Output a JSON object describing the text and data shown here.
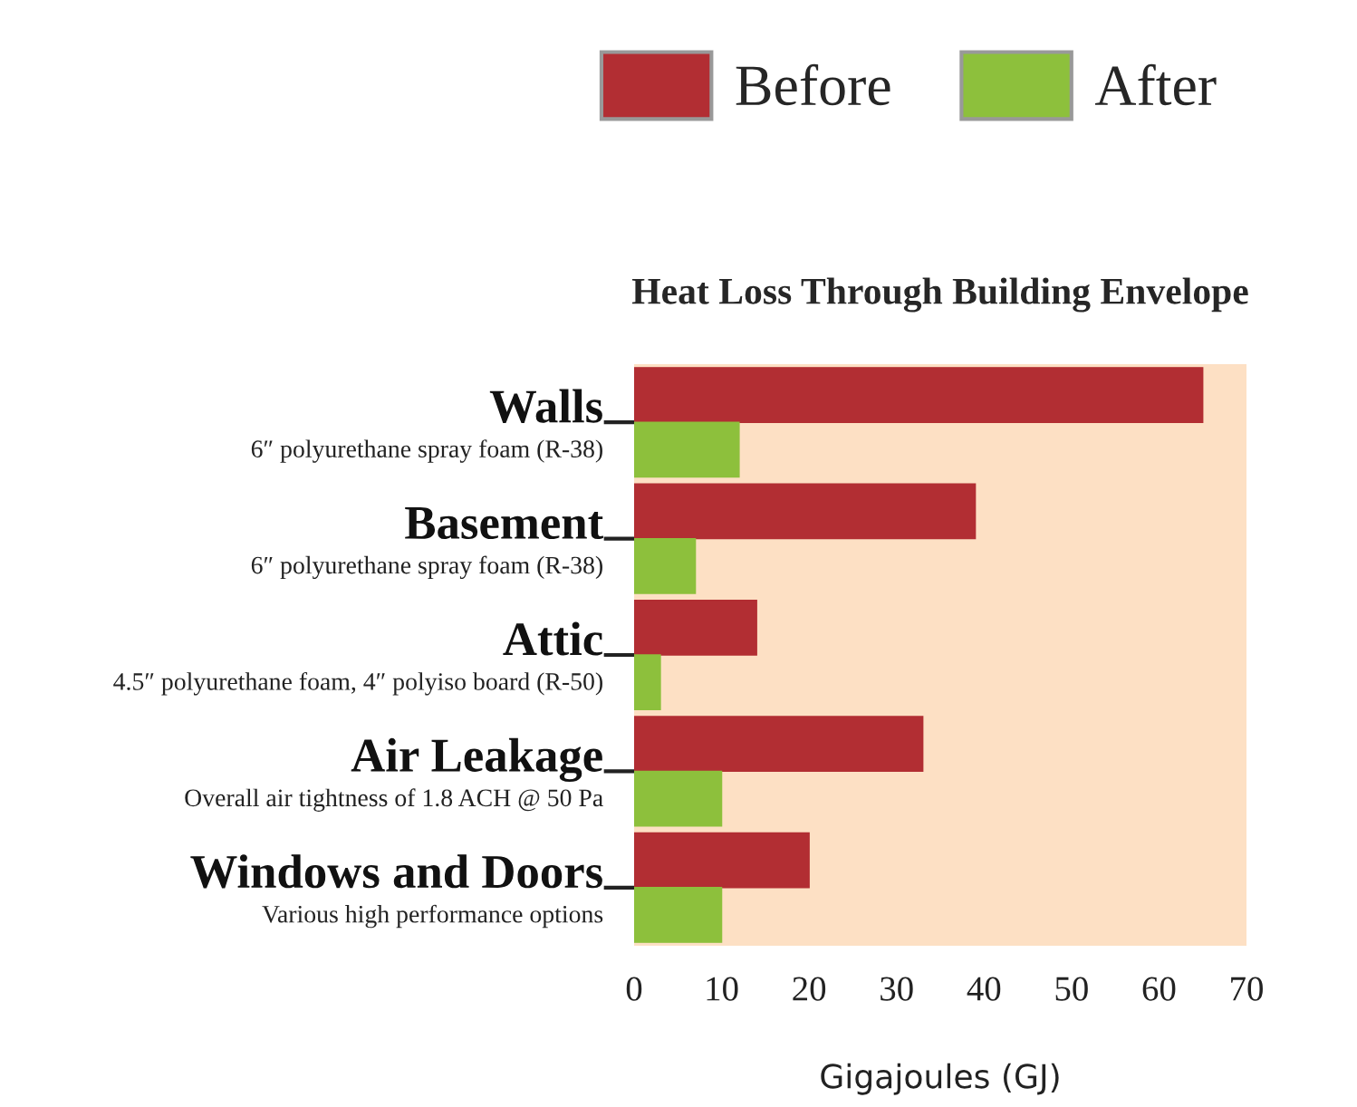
{
  "chart_data": {
    "type": "bar",
    "orientation": "horizontal",
    "title": "Heat Loss Through Building Envelope",
    "xlabel": "Gigajoules (GJ)",
    "categories": [
      "Walls\n6″ polyurethane spray foam (R-38)",
      "Basement\n6″ polyurethane spray foam (R-38)",
      "Attic\n4.5″ polyurethane foam, 4″ polyiso board (R-50)",
      "Air Leakage\nOverall air tightness of 1.8 ACH @ 50 Pa",
      "Windows and Doors\nVarious high performance options"
    ],
    "series": [
      {
        "name": "Before",
        "color": "#b22e33",
        "values": [
          65,
          39,
          14,
          33,
          20
        ]
      },
      {
        "name": "After",
        "color": "#8dc03c",
        "values": [
          12,
          7,
          3,
          10,
          10
        ]
      }
    ],
    "xlim": [
      0,
      70
    ],
    "xticks": [
      0,
      10,
      20,
      30,
      40,
      50,
      60,
      70
    ],
    "legend": "top",
    "grid": false
  }
}
